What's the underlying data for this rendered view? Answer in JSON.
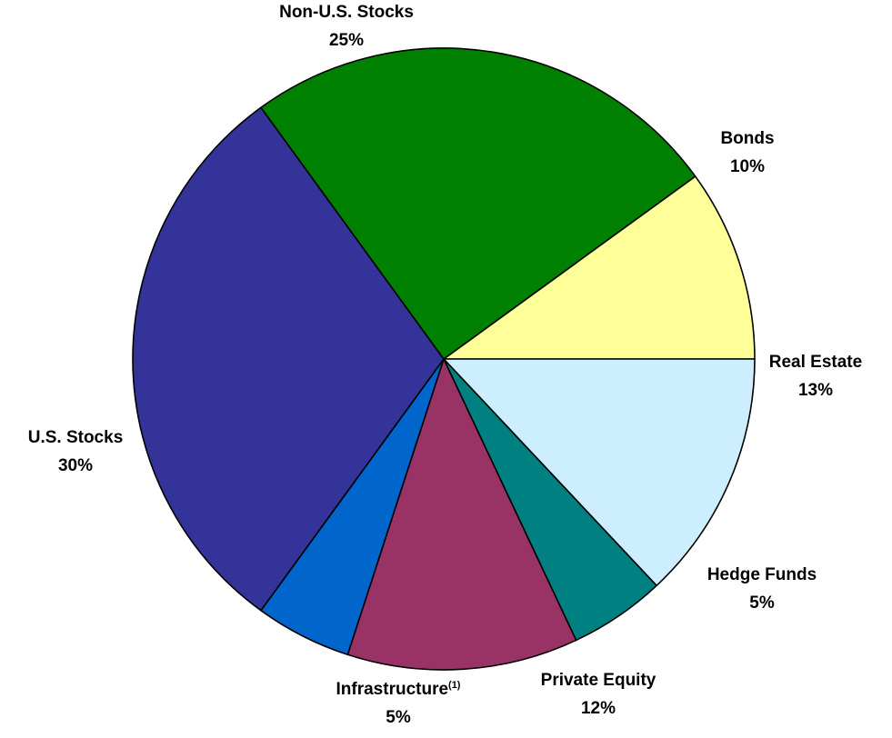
{
  "chart_data": {
    "type": "pie",
    "title": "",
    "slices": [
      {
        "label": "Bonds",
        "value": 10,
        "value_label": "10%",
        "color": "#ffff99",
        "superscript": ""
      },
      {
        "label": "Real Estate",
        "value": 13,
        "value_label": "13%",
        "color": "#cceeff",
        "superscript": ""
      },
      {
        "label": "Hedge Funds",
        "value": 5,
        "value_label": "5%",
        "color": "#008080",
        "superscript": ""
      },
      {
        "label": "Private Equity",
        "value": 12,
        "value_label": "12%",
        "color": "#993366",
        "superscript": ""
      },
      {
        "label": "Infrastructure",
        "value": 5,
        "value_label": "5%",
        "color": "#0066cc",
        "superscript": "(1)"
      },
      {
        "label": "U.S. Stocks",
        "value": 30,
        "value_label": "30%",
        "color": "#333399",
        "superscript": ""
      },
      {
        "label": "Non-U.S. Stocks",
        "value": 25,
        "value_label": "25%",
        "color": "#008000",
        "superscript": ""
      }
    ],
    "start_angle_deg": 54,
    "direction": "clockwise",
    "outline_color": "#000000",
    "legend": "none"
  }
}
